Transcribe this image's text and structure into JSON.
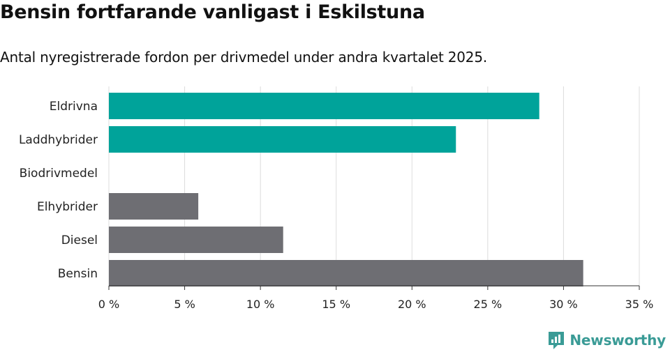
{
  "chart_data": {
    "type": "bar",
    "orientation": "horizontal",
    "title": "Bensin fortfarande vanligast i Eskilstuna",
    "subtitle": "Antal nyregistrerade fordon per drivmedel under andra kvartalet 2025.",
    "categories": [
      "Eldrivna",
      "Laddhybrider",
      "Biodrivmedel",
      "Elhybrider",
      "Diesel",
      "Bensin"
    ],
    "values": [
      28.4,
      22.9,
      0,
      5.9,
      11.5,
      31.3
    ],
    "bar_colors": [
      "#00a39a",
      "#00a39a",
      "#6e6e73",
      "#6e6e73",
      "#6e6e73",
      "#6e6e73"
    ],
    "xlim": [
      0,
      35
    ],
    "xticks": [
      0,
      5,
      10,
      15,
      20,
      25,
      30,
      35
    ],
    "xtick_labels": [
      "0 %",
      "5 %",
      "10 %",
      "15 %",
      "20 %",
      "25 %",
      "30 %",
      "35 %"
    ],
    "grid": true
  },
  "brand": {
    "name": "Newsworthy",
    "color": "#3a9b96",
    "icon": "newsworthy-logo-icon"
  }
}
